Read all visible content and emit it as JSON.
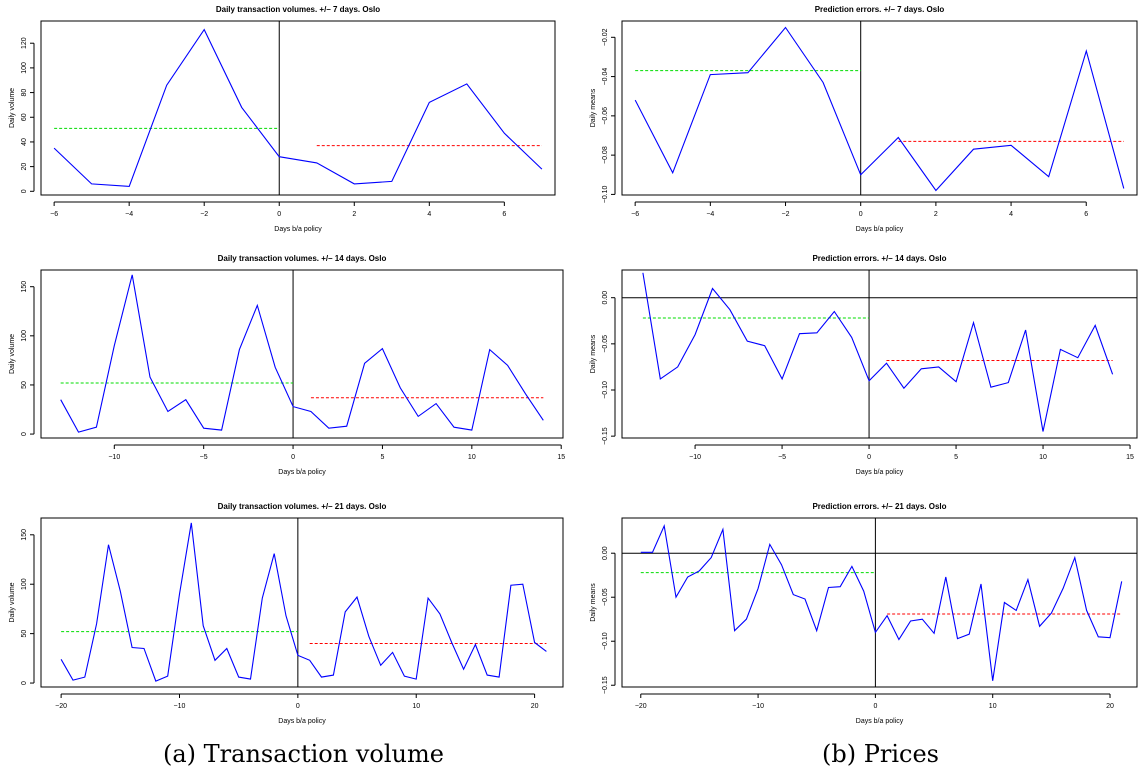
{
  "captions": {
    "a": "(a) Transaction volume",
    "b": "(b) Prices"
  },
  "colors": {
    "series": "#0000ff",
    "before_mean": "#00dd00",
    "after_mean": "#ff0000",
    "axis": "#000000"
  },
  "chart_data": [
    {
      "id": "vol7",
      "type": "line",
      "title": "Daily transaction volumes. +/– 7 days. Oslo",
      "xlabel": "Days b/a policy",
      "ylabel": "Daily volume",
      "xlim": [
        -6.35,
        7.35
      ],
      "ylim": [
        -3,
        138
      ],
      "xticks": [
        -6,
        -4,
        -2,
        0,
        2,
        4,
        6
      ],
      "xtick_labels": [
        "−6",
        "−4",
        "−2",
        "0",
        "2",
        "4",
        "6"
      ],
      "yticks": [
        0,
        20,
        40,
        60,
        80,
        100,
        120
      ],
      "ytick_labels": [
        "0",
        "20",
        "40",
        "60",
        "80",
        "100",
        "120"
      ],
      "y_rotated_ticks": true,
      "vline": 0,
      "hline": null,
      "x": [
        -6,
        -5,
        -4,
        -3,
        -2,
        -1,
        0,
        1,
        2,
        3,
        4,
        5,
        6,
        7
      ],
      "y": [
        35,
        6,
        4,
        86,
        131,
        68,
        28,
        23,
        6,
        8,
        72,
        87,
        47,
        18
      ],
      "before_mean": {
        "x": [
          -6,
          0
        ],
        "y": 51
      },
      "after_mean": {
        "x": [
          1,
          7
        ],
        "y": 37
      }
    },
    {
      "id": "pred7",
      "type": "line",
      "title": "Prediction errors. +/– 7 days. Oslo",
      "xlabel": "Days b/a policy",
      "ylabel": "Daily means",
      "xlim": [
        -6.35,
        7.35
      ],
      "ylim": [
        -0.1003,
        -0.0117
      ],
      "xticks": [
        -6,
        -4,
        -2,
        0,
        2,
        4,
        6
      ],
      "xtick_labels": [
        "−6",
        "−4",
        "−2",
        "0",
        "2",
        "4",
        "6"
      ],
      "yticks": [
        -0.1,
        -0.08,
        -0.06,
        -0.04,
        -0.02
      ],
      "ytick_labels": [
        "−0.10",
        "−0.08",
        "−0.06",
        "−0.04",
        "−0.02"
      ],
      "y_rotated_ticks": true,
      "vline": 0,
      "hline": null,
      "x": [
        -6,
        -5,
        -4,
        -3,
        -2,
        -1,
        0,
        1,
        2,
        3,
        4,
        5,
        6,
        7
      ],
      "y": [
        -0.052,
        -0.089,
        -0.039,
        -0.038,
        -0.015,
        -0.043,
        -0.09,
        -0.071,
        -0.098,
        -0.077,
        -0.075,
        -0.091,
        -0.027,
        -0.097
      ],
      "before_mean": {
        "x": [
          -6,
          0
        ],
        "y": -0.037
      },
      "after_mean": {
        "x": [
          1,
          7
        ],
        "y": -0.073
      }
    },
    {
      "id": "vol14",
      "type": "line",
      "title": "Daily transaction volumes. +/– 14 days. Oslo",
      "xlabel": "Days b/a policy",
      "ylabel": "Daily volume",
      "xlim": [
        -14.1,
        15.1
      ],
      "ylim": [
        -4,
        167
      ],
      "xticks": [
        -10,
        -5,
        0,
        5,
        10,
        15
      ],
      "xtick_labels": [
        "−10",
        "−5",
        "0",
        "5",
        "10",
        "15"
      ],
      "yticks": [
        0,
        50,
        100,
        150
      ],
      "ytick_labels": [
        "0",
        "50",
        "100",
        "150"
      ],
      "y_rotated_ticks": true,
      "vline": 0,
      "hline": null,
      "x": [
        -13,
        -12,
        -11,
        -10,
        -9,
        -8,
        -7,
        -6,
        -5,
        -4,
        -3,
        -2,
        -1,
        0,
        1,
        2,
        3,
        4,
        5,
        6,
        7,
        8,
        9,
        10,
        11,
        12,
        13,
        14
      ],
      "y": [
        35,
        2,
        7,
        90,
        162,
        58,
        23,
        35,
        6,
        4,
        86,
        131,
        68,
        28,
        23,
        6,
        8,
        72,
        87,
        47,
        18,
        31,
        7,
        4,
        86,
        70,
        41,
        14
      ],
      "before_mean": {
        "x": [
          -13,
          0
        ],
        "y": 52
      },
      "after_mean": {
        "x": [
          1,
          14
        ],
        "y": 37
      }
    },
    {
      "id": "pred14",
      "type": "line",
      "title": "Prediction errors. +/– 14 days. Oslo",
      "xlabel": "Days b/a policy",
      "ylabel": "Daily means",
      "xlim": [
        -14.2,
        15.4
      ],
      "ylim": [
        -0.152,
        0.03
      ],
      "xticks": [
        -10,
        -5,
        0,
        5,
        10,
        15
      ],
      "xtick_labels": [
        "−10",
        "−5",
        "0",
        "5",
        "10",
        "15"
      ],
      "yticks": [
        -0.15,
        -0.1,
        -0.05,
        0.0
      ],
      "ytick_labels": [
        "−0.15",
        "−0.10",
        "−0.05",
        "0.00"
      ],
      "y_rotated_ticks": true,
      "vline": 0,
      "hline": 0,
      "x": [
        -13,
        -12,
        -11,
        -10,
        -9,
        -8,
        -7,
        -6,
        -5,
        -4,
        -3,
        -2,
        -1,
        0,
        1,
        2,
        3,
        4,
        5,
        6,
        7,
        8,
        9,
        10,
        11,
        12,
        13,
        14
      ],
      "y": [
        0.027,
        -0.088,
        -0.075,
        -0.04,
        0.01,
        -0.013,
        -0.047,
        -0.052,
        -0.088,
        -0.039,
        -0.038,
        -0.015,
        -0.043,
        -0.09,
        -0.071,
        -0.098,
        -0.077,
        -0.075,
        -0.091,
        -0.027,
        -0.097,
        -0.092,
        -0.035,
        -0.145,
        -0.056,
        -0.065,
        -0.03,
        -0.083
      ],
      "before_mean": {
        "x": [
          -13,
          0
        ],
        "y": -0.022
      },
      "after_mean": {
        "x": [
          1,
          14
        ],
        "y": -0.068
      }
    },
    {
      "id": "vol21",
      "type": "line",
      "title": "Daily transaction volumes. +/– 21 days. Oslo",
      "xlabel": "Days b/a policy",
      "ylabel": "Daily volume",
      "xlim": [
        -21.7,
        22.4
      ],
      "ylim": [
        -4,
        167
      ],
      "xticks": [
        -20,
        -10,
        0,
        10,
        20
      ],
      "xtick_labels": [
        "−20",
        "−10",
        "0",
        "10",
        "20"
      ],
      "yticks": [
        0,
        50,
        100,
        150
      ],
      "ytick_labels": [
        "0",
        "50",
        "100",
        "150"
      ],
      "y_rotated_ticks": true,
      "vline": 0,
      "hline": null,
      "x": [
        -20,
        -19,
        -18,
        -17,
        -16,
        -15,
        -14,
        -13,
        -12,
        -11,
        -10,
        -9,
        -8,
        -7,
        -6,
        -5,
        -4,
        -3,
        -2,
        -1,
        0,
        1,
        2,
        3,
        4,
        5,
        6,
        7,
        8,
        9,
        10,
        11,
        12,
        13,
        14,
        15,
        16,
        17,
        18,
        19,
        20,
        21
      ],
      "y": [
        24,
        3,
        6,
        60,
        140,
        93,
        36,
        35,
        2,
        7,
        90,
        162,
        58,
        23,
        35,
        6,
        4,
        86,
        131,
        68,
        28,
        23,
        6,
        8,
        72,
        87,
        47,
        18,
        31,
        7,
        4,
        86,
        70,
        41,
        14,
        39,
        8,
        6,
        99,
        100,
        41,
        32
      ],
      "before_mean": {
        "x": [
          -20,
          0
        ],
        "y": 52
      },
      "after_mean": {
        "x": [
          1,
          21
        ],
        "y": 40
      }
    },
    {
      "id": "pred21",
      "type": "line",
      "title": "Prediction errors. +/– 21 days. Oslo",
      "xlabel": "Days b/a policy",
      "ylabel": "Daily means",
      "xlim": [
        -21.6,
        22.3
      ],
      "ylim": [
        -0.152,
        0.04
      ],
      "xticks": [
        -20,
        -10,
        0,
        10,
        20
      ],
      "xtick_labels": [
        "−20",
        "−10",
        "0",
        "10",
        "20"
      ],
      "yticks": [
        -0.15,
        -0.1,
        -0.05,
        0.0
      ],
      "ytick_labels": [
        "−0.15",
        "−0.10",
        "−0.05",
        "0.00"
      ],
      "y_rotated_ticks": true,
      "vline": 0,
      "hline": 0,
      "x": [
        -20,
        -19,
        -18,
        -17,
        -16,
        -15,
        -14,
        -13,
        -12,
        -11,
        -10,
        -9,
        -8,
        -7,
        -6,
        -5,
        -4,
        -3,
        -2,
        -1,
        0,
        1,
        2,
        3,
        4,
        5,
        6,
        7,
        8,
        9,
        10,
        11,
        12,
        13,
        14,
        15,
        16,
        17,
        18,
        19,
        20,
        21
      ],
      "y": [
        0.001,
        0.001,
        0.031,
        -0.05,
        -0.027,
        -0.02,
        -0.005,
        0.027,
        -0.088,
        -0.075,
        -0.04,
        0.01,
        -0.013,
        -0.047,
        -0.052,
        -0.088,
        -0.039,
        -0.038,
        -0.015,
        -0.043,
        -0.09,
        -0.071,
        -0.098,
        -0.077,
        -0.075,
        -0.091,
        -0.027,
        -0.097,
        -0.092,
        -0.035,
        -0.145,
        -0.056,
        -0.065,
        -0.03,
        -0.083,
        -0.068,
        -0.04,
        -0.005,
        -0.065,
        -0.095,
        -0.096,
        -0.032
      ],
      "before_mean": {
        "x": [
          -20,
          0
        ],
        "y": -0.022
      },
      "after_mean": {
        "x": [
          1,
          21
        ],
        "y": -0.069
      }
    }
  ]
}
